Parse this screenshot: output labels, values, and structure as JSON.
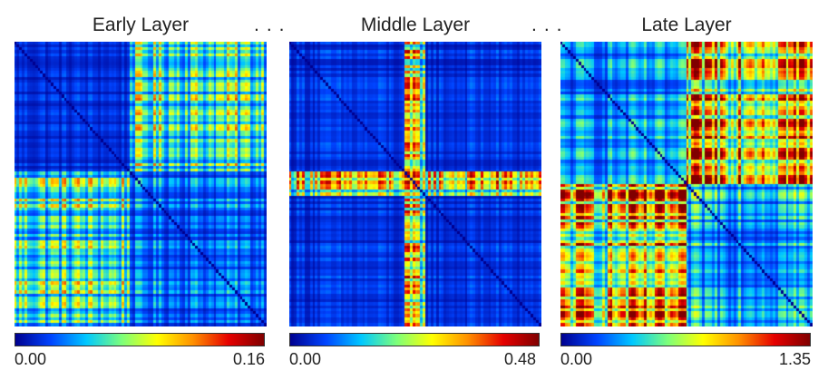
{
  "colormap": [
    "#00008f",
    "#0044ff",
    "#00c8ff",
    "#7dff7a",
    "#ffff00",
    "#ff9000",
    "#e60000",
    "#800000"
  ],
  "separators": [
    "...",
    "..."
  ],
  "chart_data": [
    {
      "type": "heatmap",
      "title": "Early Layer",
      "colorbar": {
        "min_label": "0.00",
        "max_label": "0.16",
        "vmin": 0.0,
        "vmax": 0.16
      },
      "n": 96,
      "diagonal": "zero",
      "blocks": [
        {
          "rows": [
            0,
            44
          ],
          "cols": [
            44,
            96
          ],
          "level": 0.45
        },
        {
          "rows": [
            44,
            96
          ],
          "cols": [
            0,
            44
          ],
          "level": 0.45
        },
        {
          "rows": [
            0,
            44
          ],
          "cols": [
            0,
            44
          ],
          "level": 0.12
        },
        {
          "rows": [
            44,
            96
          ],
          "cols": [
            44,
            96
          ],
          "level": 0.22
        }
      ]
    },
    {
      "type": "heatmap",
      "title": "Middle Layer",
      "colorbar": {
        "min_label": "0.00",
        "max_label": "0.48",
        "vmin": 0.0,
        "vmax": 0.48
      },
      "n": 96,
      "diagonal": "zero",
      "blocks": [
        {
          "rows": [
            0,
            96
          ],
          "cols": [
            0,
            96
          ],
          "level": 0.12
        },
        {
          "rows": [
            44,
            52
          ],
          "cols": [
            0,
            96
          ],
          "level": 0.55
        },
        {
          "rows": [
            0,
            96
          ],
          "cols": [
            44,
            52
          ],
          "level": 0.55
        }
      ]
    },
    {
      "type": "heatmap",
      "title": "Late Layer",
      "colorbar": {
        "min_label": "0.00",
        "max_label": "1.35",
        "vmin": 0.0,
        "vmax": 1.35
      },
      "n": 96,
      "diagonal": "zero",
      "blocks": [
        {
          "rows": [
            0,
            48
          ],
          "cols": [
            0,
            48
          ],
          "level": 0.25
        },
        {
          "rows": [
            0,
            48
          ],
          "cols": [
            48,
            96
          ],
          "level": 0.72
        },
        {
          "rows": [
            48,
            96
          ],
          "cols": [
            0,
            48
          ],
          "level": 0.72
        },
        {
          "rows": [
            48,
            96
          ],
          "cols": [
            48,
            96
          ],
          "level": 0.35
        }
      ]
    }
  ]
}
